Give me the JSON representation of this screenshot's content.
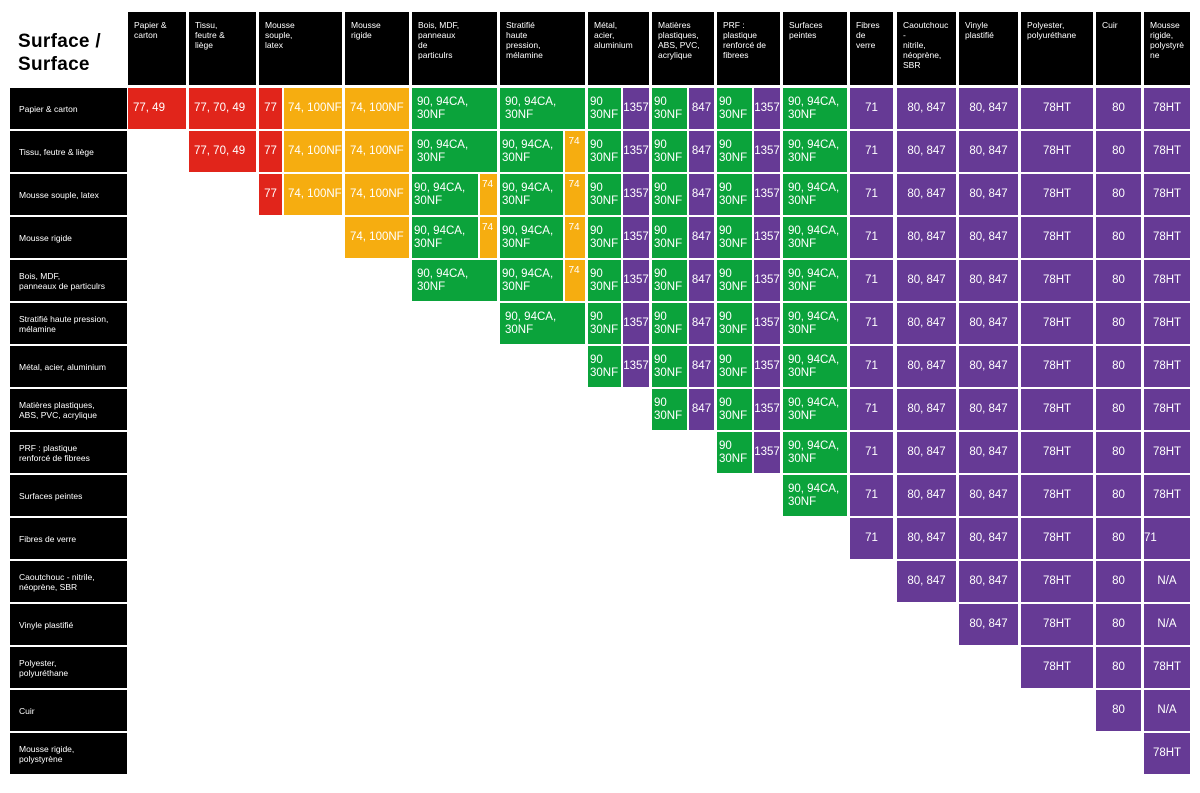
{
  "title": "Surface /\nSurface",
  "colors": {
    "r": "#e1251b",
    "o": "#f6ad10",
    "g": "#0ba33b",
    "p": "#663a95"
  },
  "columns": [
    "Papier &\ncarton",
    "Tissu,\nfeutre &\nliège",
    "Mousse\nsouple,\nlatex",
    "Mousse\nrigide",
    "Bois, MDF,\npanneaux\nde\nparticulrs",
    "Stratifié\nhaute\npression,\nmélamine",
    "Métal,\nacier,\naluminium",
    "Matières\nplastiques,\nABS, PVC,\nacrylique",
    "PRF :\nplastique\nrenforcé de\nfibrees",
    "Surfaces\npeintes",
    "Fibres de\nverre",
    "Caoutchouc -\nnitrile,\nnéoprène,\nSBR",
    "Vinyle\nplastifié",
    "Polyester,\npolyuréthane",
    "Cuir",
    "Mousse\nrigide,\npolystyrè\nne"
  ],
  "rows": [
    {
      "label": "Papier & carton",
      "cells": [
        [
          [
            "r",
            "77, 49"
          ]
        ],
        [
          [
            "r",
            "77, 70, 49"
          ]
        ],
        [
          [
            "r",
            "77"
          ],
          [
            "o",
            "74, 100NF"
          ]
        ],
        [
          [
            "o",
            "74, 100NF"
          ]
        ],
        [
          [
            "g",
            "90, 94CA,\n30NF"
          ]
        ],
        [
          [
            "g",
            "90, 94CA,\n30NF"
          ]
        ],
        [
          [
            "g",
            "90\n30NF"
          ],
          [
            "p",
            "1357"
          ]
        ],
        [
          [
            "g",
            "90\n30NF"
          ],
          [
            "p",
            "847"
          ]
        ],
        [
          [
            "g",
            "90\n30NF"
          ],
          [
            "p",
            "1357"
          ]
        ],
        [
          [
            "g",
            "90, 94CA,\n30NF"
          ]
        ],
        [
          [
            "p",
            "71"
          ]
        ],
        [
          [
            "p",
            "80, 847"
          ]
        ],
        [
          [
            "p",
            "80, 847"
          ]
        ],
        [
          [
            "p",
            "78HT"
          ]
        ],
        [
          [
            "p",
            "80"
          ]
        ],
        [
          [
            "p",
            "78HT"
          ]
        ]
      ]
    },
    {
      "label": "Tissu, feutre & liège",
      "cells": [
        null,
        [
          [
            "r",
            "77, 70, 49"
          ]
        ],
        [
          [
            "r",
            "77"
          ],
          [
            "o",
            "74, 100NF"
          ]
        ],
        [
          [
            "o",
            "74, 100NF"
          ]
        ],
        [
          [
            "g",
            "90, 94CA,\n30NF"
          ]
        ],
        [
          [
            "g",
            "90, 94CA,\n30NF"
          ],
          [
            "o",
            "74"
          ]
        ],
        [
          [
            "g",
            "90\n30NF"
          ],
          [
            "p",
            "1357"
          ]
        ],
        [
          [
            "g",
            "90\n30NF"
          ],
          [
            "p",
            "847"
          ]
        ],
        [
          [
            "g",
            "90\n30NF"
          ],
          [
            "p",
            "1357"
          ]
        ],
        [
          [
            "g",
            "90, 94CA,\n30NF"
          ]
        ],
        [
          [
            "p",
            "71"
          ]
        ],
        [
          [
            "p",
            "80, 847"
          ]
        ],
        [
          [
            "p",
            "80, 847"
          ]
        ],
        [
          [
            "p",
            "78HT"
          ]
        ],
        [
          [
            "p",
            "80"
          ]
        ],
        [
          [
            "p",
            "78HT"
          ]
        ]
      ]
    },
    {
      "label": "Mousse souple, latex",
      "cells": [
        null,
        null,
        [
          [
            "r",
            "77"
          ],
          [
            "o",
            "74, 100NF"
          ]
        ],
        [
          [
            "o",
            "74, 100NF"
          ]
        ],
        [
          [
            "g",
            "90, 94CA,\n30NF"
          ],
          [
            "o",
            "74"
          ]
        ],
        [
          [
            "g",
            "90, 94CA,\n30NF"
          ],
          [
            "o",
            "74"
          ]
        ],
        [
          [
            "g",
            "90\n30NF"
          ],
          [
            "p",
            "1357"
          ]
        ],
        [
          [
            "g",
            "90\n30NF"
          ],
          [
            "p",
            "847"
          ]
        ],
        [
          [
            "g",
            "90\n30NF"
          ],
          [
            "p",
            "1357"
          ]
        ],
        [
          [
            "g",
            "90, 94CA,\n30NF"
          ]
        ],
        [
          [
            "p",
            "71"
          ]
        ],
        [
          [
            "p",
            "80, 847"
          ]
        ],
        [
          [
            "p",
            "80, 847"
          ]
        ],
        [
          [
            "p",
            "78HT"
          ]
        ],
        [
          [
            "p",
            "80"
          ]
        ],
        [
          [
            "p",
            "78HT"
          ]
        ]
      ]
    },
    {
      "label": "Mousse rigide",
      "cells": [
        null,
        null,
        null,
        [
          [
            "o",
            "74, 100NF"
          ]
        ],
        [
          [
            "g",
            "90, 94CA,\n30NF"
          ],
          [
            "o",
            "74"
          ]
        ],
        [
          [
            "g",
            "90, 94CA,\n30NF"
          ],
          [
            "o",
            "74"
          ]
        ],
        [
          [
            "g",
            "90\n30NF"
          ],
          [
            "p",
            "1357"
          ]
        ],
        [
          [
            "g",
            "90\n30NF"
          ],
          [
            "p",
            "847"
          ]
        ],
        [
          [
            "g",
            "90\n30NF"
          ],
          [
            "p",
            "1357"
          ]
        ],
        [
          [
            "g",
            "90, 94CA,\n30NF"
          ]
        ],
        [
          [
            "p",
            "71"
          ]
        ],
        [
          [
            "p",
            "80, 847"
          ]
        ],
        [
          [
            "p",
            "80, 847"
          ]
        ],
        [
          [
            "p",
            "78HT"
          ]
        ],
        [
          [
            "p",
            "80"
          ]
        ],
        [
          [
            "p",
            "78HT"
          ]
        ]
      ]
    },
    {
      "label": "Bois, MDF,\npanneaux de particulrs",
      "cells": [
        null,
        null,
        null,
        null,
        [
          [
            "g",
            "90, 94CA,\n30NF"
          ]
        ],
        [
          [
            "g",
            "90, 94CA,\n30NF"
          ],
          [
            "o",
            "74"
          ]
        ],
        [
          [
            "g",
            "90\n30NF"
          ],
          [
            "p",
            "1357"
          ]
        ],
        [
          [
            "g",
            "90\n30NF"
          ],
          [
            "p",
            "847"
          ]
        ],
        [
          [
            "g",
            "90\n30NF"
          ],
          [
            "p",
            "1357"
          ]
        ],
        [
          [
            "g",
            "90, 94CA,\n30NF"
          ]
        ],
        [
          [
            "p",
            "71"
          ]
        ],
        [
          [
            "p",
            "80, 847"
          ]
        ],
        [
          [
            "p",
            "80, 847"
          ]
        ],
        [
          [
            "p",
            "78HT"
          ]
        ],
        [
          [
            "p",
            "80"
          ]
        ],
        [
          [
            "p",
            "78HT"
          ]
        ]
      ]
    },
    {
      "label": "Stratifié haute pression,\nmélamine",
      "cells": [
        null,
        null,
        null,
        null,
        null,
        [
          [
            "g",
            "90, 94CA,\n30NF"
          ]
        ],
        [
          [
            "g",
            "90\n30NF"
          ],
          [
            "p",
            "1357"
          ]
        ],
        [
          [
            "g",
            "90\n30NF"
          ],
          [
            "p",
            "847"
          ]
        ],
        [
          [
            "g",
            "90\n30NF"
          ],
          [
            "p",
            "1357"
          ]
        ],
        [
          [
            "g",
            "90, 94CA,\n30NF"
          ]
        ],
        [
          [
            "p",
            "71"
          ]
        ],
        [
          [
            "p",
            "80, 847"
          ]
        ],
        [
          [
            "p",
            "80, 847"
          ]
        ],
        [
          [
            "p",
            "78HT"
          ]
        ],
        [
          [
            "p",
            "80"
          ]
        ],
        [
          [
            "p",
            "78HT"
          ]
        ]
      ]
    },
    {
      "label": "Métal, acier, aluminium",
      "cells": [
        null,
        null,
        null,
        null,
        null,
        null,
        [
          [
            "g",
            "90\n30NF"
          ],
          [
            "p",
            "1357"
          ]
        ],
        [
          [
            "g",
            "90\n30NF"
          ],
          [
            "p",
            "847"
          ]
        ],
        [
          [
            "g",
            "90\n30NF"
          ],
          [
            "p",
            "1357"
          ]
        ],
        [
          [
            "g",
            "90, 94CA,\n30NF"
          ]
        ],
        [
          [
            "p",
            "71"
          ]
        ],
        [
          [
            "p",
            "80, 847"
          ]
        ],
        [
          [
            "p",
            "80, 847"
          ]
        ],
        [
          [
            "p",
            "78HT"
          ]
        ],
        [
          [
            "p",
            "80"
          ]
        ],
        [
          [
            "p",
            "78HT"
          ]
        ]
      ]
    },
    {
      "label": "Matières plastiques,\nABS, PVC, acrylique",
      "cells": [
        null,
        null,
        null,
        null,
        null,
        null,
        null,
        [
          [
            "g",
            "90\n30NF"
          ],
          [
            "p",
            "847"
          ]
        ],
        [
          [
            "g",
            "90\n30NF"
          ],
          [
            "p",
            "1357"
          ]
        ],
        [
          [
            "g",
            "90, 94CA,\n30NF"
          ]
        ],
        [
          [
            "p",
            "71"
          ]
        ],
        [
          [
            "p",
            "80, 847"
          ]
        ],
        [
          [
            "p",
            "80, 847"
          ]
        ],
        [
          [
            "p",
            "78HT"
          ]
        ],
        [
          [
            "p",
            "80"
          ]
        ],
        [
          [
            "p",
            "78HT"
          ]
        ]
      ]
    },
    {
      "label": "PRF : plastique\nrenforcé de fibrees",
      "cells": [
        null,
        null,
        null,
        null,
        null,
        null,
        null,
        null,
        [
          [
            "g",
            "90\n30NF"
          ],
          [
            "p",
            "1357"
          ]
        ],
        [
          [
            "g",
            "90, 94CA,\n30NF"
          ]
        ],
        [
          [
            "p",
            "71"
          ]
        ],
        [
          [
            "p",
            "80, 847"
          ]
        ],
        [
          [
            "p",
            "80, 847"
          ]
        ],
        [
          [
            "p",
            "78HT"
          ]
        ],
        [
          [
            "p",
            "80"
          ]
        ],
        [
          [
            "p",
            "78HT"
          ]
        ]
      ]
    },
    {
      "label": "Surfaces peintes",
      "cells": [
        null,
        null,
        null,
        null,
        null,
        null,
        null,
        null,
        null,
        [
          [
            "g",
            "90, 94CA,\n30NF"
          ]
        ],
        [
          [
            "p",
            "71"
          ]
        ],
        [
          [
            "p",
            "80, 847"
          ]
        ],
        [
          [
            "p",
            "80, 847"
          ]
        ],
        [
          [
            "p",
            "78HT"
          ]
        ],
        [
          [
            "p",
            "80"
          ]
        ],
        [
          [
            "p",
            "78HT"
          ]
        ]
      ]
    },
    {
      "label": "Fibres de verre",
      "cells": [
        null,
        null,
        null,
        null,
        null,
        null,
        null,
        null,
        null,
        null,
        [
          [
            "p",
            "71"
          ]
        ],
        [
          [
            "p",
            "80, 847"
          ]
        ],
        [
          [
            "p",
            "80, 847"
          ]
        ],
        [
          [
            "p",
            "78HT"
          ]
        ],
        [
          [
            "p",
            "80"
          ]
        ],
        [
          [
            "p",
            "71"
          ]
        ]
      ]
    },
    {
      "label": "Caoutchouc - nitrile,\nnéoprène, SBR",
      "cells": [
        null,
        null,
        null,
        null,
        null,
        null,
        null,
        null,
        null,
        null,
        null,
        [
          [
            "p",
            "80, 847"
          ]
        ],
        [
          [
            "p",
            "80, 847"
          ]
        ],
        [
          [
            "p",
            "78HT"
          ]
        ],
        [
          [
            "p",
            "80"
          ]
        ],
        [
          [
            "p",
            "N/A"
          ]
        ]
      ]
    },
    {
      "label": "Vinyle plastifié",
      "cells": [
        null,
        null,
        null,
        null,
        null,
        null,
        null,
        null,
        null,
        null,
        null,
        null,
        [
          [
            "p",
            "80, 847"
          ]
        ],
        [
          [
            "p",
            "78HT"
          ]
        ],
        [
          [
            "p",
            "80"
          ]
        ],
        [
          [
            "p",
            "N/A"
          ]
        ]
      ]
    },
    {
      "label": "Polyester,\npolyuréthane",
      "cells": [
        null,
        null,
        null,
        null,
        null,
        null,
        null,
        null,
        null,
        null,
        null,
        null,
        null,
        [
          [
            "p",
            "78HT"
          ]
        ],
        [
          [
            "p",
            "80"
          ]
        ],
        [
          [
            "p",
            "78HT"
          ]
        ]
      ]
    },
    {
      "label": "Cuir",
      "cells": [
        null,
        null,
        null,
        null,
        null,
        null,
        null,
        null,
        null,
        null,
        null,
        null,
        null,
        null,
        [
          [
            "p",
            "80"
          ]
        ],
        [
          [
            "p",
            "N/A"
          ]
        ]
      ]
    },
    {
      "label": "Mousse rigide,\npolystyrène",
      "cells": [
        null,
        null,
        null,
        null,
        null,
        null,
        null,
        null,
        null,
        null,
        null,
        null,
        null,
        null,
        null,
        [
          [
            "p",
            "78HT"
          ]
        ]
      ]
    }
  ]
}
